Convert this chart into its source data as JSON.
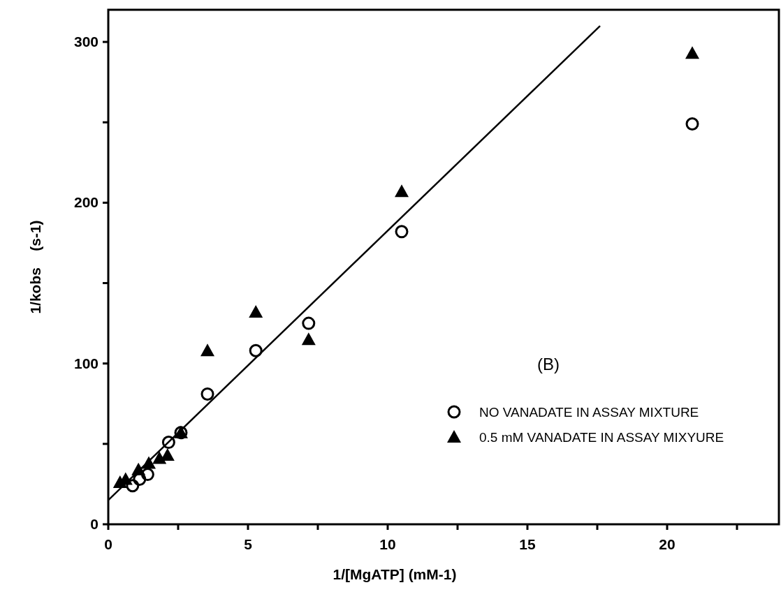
{
  "chart_data": {
    "type": "scatter",
    "xlabel": "1/[MgATP] (mM-1)",
    "ylabel": "1/kobs    (s-1)",
    "annotations": [
      "(B)"
    ],
    "xlim": [
      0,
      24
    ],
    "ylim": [
      0,
      320
    ],
    "xticks": [
      0,
      {
        "value": 2.5,
        "label": null
      },
      5,
      {
        "value": 7.5,
        "label": null
      },
      10,
      {
        "value": 12.5,
        "label": null
      },
      15,
      {
        "value": 17.5,
        "label": null
      },
      20,
      {
        "value": 22.5,
        "label": null
      }
    ],
    "yticks": [
      0,
      {
        "value": 50,
        "label": null
      },
      100,
      {
        "value": 150,
        "label": null
      },
      200,
      {
        "value": 250,
        "label": null
      },
      300
    ],
    "grid": false,
    "legend": "right",
    "series": [
      {
        "name": "NO VANADATE IN ASSAY MIXTURE",
        "color": "#000000",
        "marker": "circle",
        "x": [
          0.87,
          1.12,
          1.41,
          2.16,
          2.6,
          3.55,
          5.28,
          7.17,
          10.5,
          20.9
        ],
        "values": [
          24,
          28,
          31,
          51,
          57,
          81,
          108,
          125,
          182,
          249
        ]
      },
      {
        "name": "0.5 mM VANADATE IN ASSAY MIXYURE",
        "color": "#000000",
        "marker": "triangle",
        "x": [
          0.42,
          0.62,
          1.08,
          1.45,
          1.83,
          2.12,
          2.6,
          3.55,
          5.28,
          7.17,
          10.5,
          20.9
        ],
        "values": [
          26,
          28,
          34,
          38,
          41,
          43,
          57,
          108,
          132,
          115,
          207,
          293
        ]
      },
      {
        "type": "line",
        "color": "#000000",
        "marker": "none",
        "line_style": "solid",
        "x": [
          0,
          17.6
        ],
        "values": [
          15,
          310
        ]
      }
    ]
  }
}
